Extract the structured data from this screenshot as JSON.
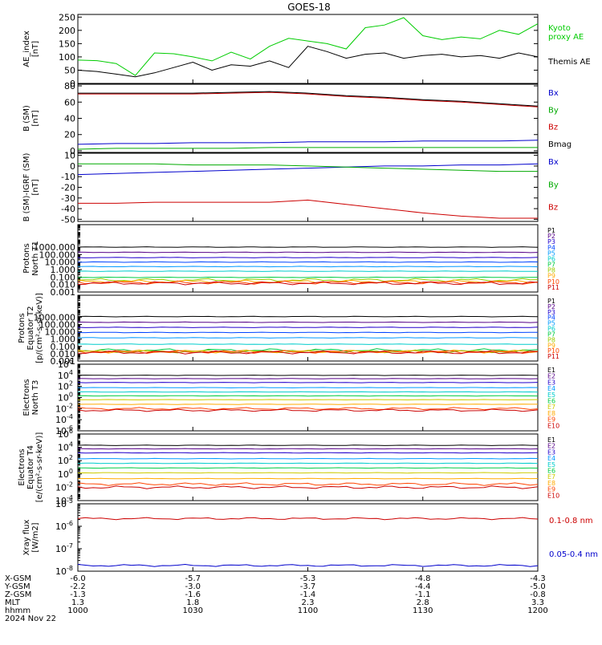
{
  "title": "GOES-18",
  "x_axis": {
    "rows": [
      {
        "label": "X-GSM",
        "values": [
          "-6.0",
          "-5.7",
          "-5.3",
          "-4.8",
          "-4.3"
        ]
      },
      {
        "label": "Y-GSM",
        "values": [
          "-2.2",
          "-3.0",
          "-3.7",
          "-4.4",
          "-5.0"
        ]
      },
      {
        "label": "Z-GSM",
        "values": [
          "-1.3",
          "-1.6",
          "-1.4",
          "-1.1",
          "-0.8"
        ]
      },
      {
        "label": "MLT",
        "values": [
          "1.3",
          "1.8",
          "2.3",
          "2.8",
          "3.3"
        ]
      },
      {
        "label": "hhmm",
        "values": [
          "1000",
          "1030",
          "1100",
          "1130",
          "1200"
        ]
      }
    ],
    "date": "2024 Nov 22"
  },
  "chart_data": [
    {
      "id": "ae",
      "type": "line",
      "ylabel": "AE_index\n[nT]",
      "ylim": [
        0,
        260
      ],
      "yticks": [
        "0",
        "50",
        "100",
        "150",
        "200",
        "250"
      ],
      "x": [
        1000,
        1005,
        1010,
        1015,
        1020,
        1025,
        1030,
        1035,
        1040,
        1045,
        1050,
        1055,
        1100,
        1105,
        1110,
        1115,
        1120,
        1125,
        1130,
        1135,
        1140,
        1145,
        1150,
        1155,
        1200
      ],
      "series": [
        {
          "name": "Kyoto\nproxy AE",
          "color": "#00cc00",
          "values": [
            88,
            86,
            75,
            30,
            115,
            112,
            100,
            85,
            118,
            92,
            140,
            170,
            160,
            150,
            130,
            210,
            220,
            248,
            180,
            165,
            175,
            168,
            200,
            185,
            225
          ]
        },
        {
          "name": "Themis AE",
          "color": "#000000",
          "values": [
            50,
            45,
            35,
            25,
            40,
            60,
            80,
            50,
            70,
            65,
            85,
            60,
            140,
            120,
            95,
            110,
            115,
            95,
            105,
            110,
            100,
            105,
            95,
            115,
            100
          ]
        }
      ]
    },
    {
      "id": "b",
      "type": "line",
      "ylabel": "B (SM)\n[nT]",
      "ylim": [
        -2,
        82
      ],
      "yticks": [
        "0",
        "20",
        "40",
        "60",
        "80"
      ],
      "x": [
        1000,
        1010,
        1020,
        1030,
        1040,
        1050,
        1100,
        1110,
        1120,
        1130,
        1140,
        1150,
        1200
      ],
      "series": [
        {
          "name": "Bx",
          "color": "#0000cc",
          "values": [
            8,
            9,
            9,
            10,
            10,
            10,
            11,
            11,
            11,
            12,
            12,
            12,
            13
          ]
        },
        {
          "name": "By",
          "color": "#00aa00",
          "values": [
            2,
            3,
            3,
            3,
            3,
            4,
            4,
            4,
            4,
            4,
            4,
            4,
            4
          ]
        },
        {
          "name": "Bz",
          "color": "#cc0000",
          "values": [
            70,
            70,
            70,
            70,
            71,
            72,
            70,
            67,
            65,
            62,
            60,
            57,
            54
          ]
        },
        {
          "name": "Bmag",
          "color": "#000000",
          "values": [
            71,
            71,
            71,
            71,
            72,
            73,
            71,
            68,
            66,
            63,
            61,
            58,
            55
          ]
        }
      ]
    },
    {
      "id": "dbigrf",
      "type": "line",
      "ylabel": "B (SM)-IGRF (SM)\n[nT]",
      "ylim": [
        -52,
        12
      ],
      "yticks": [
        "-50",
        "-40",
        "-30",
        "-20",
        "-10",
        "0",
        "10"
      ],
      "x": [
        1000,
        1010,
        1020,
        1030,
        1040,
        1050,
        1100,
        1110,
        1120,
        1130,
        1140,
        1150,
        1200
      ],
      "series": [
        {
          "name": "Bx",
          "color": "#0000cc",
          "values": [
            -8,
            -7,
            -6,
            -5,
            -4,
            -3,
            -2,
            -1,
            0,
            0,
            1,
            1,
            2
          ]
        },
        {
          "name": "By",
          "color": "#00aa00",
          "values": [
            2,
            2,
            2,
            1,
            1,
            1,
            0,
            -1,
            -2,
            -3,
            -4,
            -5,
            -5
          ]
        },
        {
          "name": "Bz",
          "color": "#cc0000",
          "values": [
            -35,
            -35,
            -34,
            -34,
            -34,
            -34,
            -32,
            -36,
            -40,
            -44,
            -47,
            -49,
            -49
          ]
        }
      ]
    },
    {
      "id": "protons_t1",
      "type": "line",
      "log": true,
      "ylabel": "Protons\nNorth T1",
      "ylim_exp": [
        -3,
        6
      ],
      "yticks": [
        "0.001",
        "0.010",
        "0.100",
        "1.000",
        "10.000",
        "100.000",
        "1000.000"
      ],
      "channels": [
        {
          "name": "P1",
          "color": "#000000",
          "level": 1000
        },
        {
          "name": "P2",
          "color": "#550088",
          "level": 200
        },
        {
          "name": "P3",
          "color": "#2200cc",
          "level": 40
        },
        {
          "name": "P4",
          "color": "#0044ff",
          "level": 10
        },
        {
          "name": "P5",
          "color": "#0099ff",
          "level": 2.5
        },
        {
          "name": "P6",
          "color": "#00cccc",
          "level": 0.6
        },
        {
          "name": "P7",
          "color": "#00cc44",
          "level": 0.09
        },
        {
          "name": "P8",
          "color": "#99cc00",
          "level": 0.04
        },
        {
          "name": "P9",
          "color": "#ffaa00",
          "level": 0.025
        },
        {
          "name": "P10",
          "color": "#ff4400",
          "level": 0.018
        },
        {
          "name": "P11",
          "color": "#cc0000",
          "level": 0.015
        }
      ]
    },
    {
      "id": "protons_t2",
      "type": "line",
      "log": true,
      "ylabel": "Protons\nEquator T2\n[p/(cm²-s-sr-keV)]",
      "ylim_exp": [
        -3,
        6
      ],
      "yticks": [
        "0.001",
        "0.010",
        "0.100",
        "1.000",
        "10.000",
        "100.000",
        "1000.000"
      ],
      "channels": [
        {
          "name": "P1",
          "color": "#000000",
          "level": 1200
        },
        {
          "name": "P2",
          "color": "#550088",
          "level": 200
        },
        {
          "name": "P3",
          "color": "#2200cc",
          "level": 40
        },
        {
          "name": "P4",
          "color": "#0044ff",
          "level": 8
        },
        {
          "name": "P5",
          "color": "#0099ff",
          "level": 1.5
        },
        {
          "name": "P6",
          "color": "#00cccc",
          "level": 0.2
        },
        {
          "name": "P7",
          "color": "#00cc44",
          "level": 0.03
        },
        {
          "name": "P8",
          "color": "#99cc00",
          "level": 0.02
        },
        {
          "name": "P9",
          "color": "#ffaa00",
          "level": 0.02
        },
        {
          "name": "P10",
          "color": "#ff4400",
          "level": 0.018
        },
        {
          "name": "P11",
          "color": "#cc0000",
          "level": 0.015
        }
      ]
    },
    {
      "id": "electrons_t3",
      "type": "line",
      "log": true,
      "ylabel": "Electrons\nNorth T3",
      "ylim_exp": [
        -6,
        6
      ],
      "ytick_exps": [
        -6,
        -4,
        -2,
        0,
        2,
        4,
        6
      ],
      "channels": [
        {
          "name": "E1",
          "color": "#000000",
          "level": 10000
        },
        {
          "name": "E2",
          "color": "#550088",
          "level": 2500
        },
        {
          "name": "E3",
          "color": "#2200cc",
          "level": 500
        },
        {
          "name": "E4",
          "color": "#0099ff",
          "level": 60
        },
        {
          "name": "E5",
          "color": "#00cccc",
          "level": 10
        },
        {
          "name": "E6",
          "color": "#00cc44",
          "level": 2
        },
        {
          "name": "E7",
          "color": "#cccc00",
          "level": 0.4
        },
        {
          "name": "E8",
          "color": "#ffaa00",
          "level": 0.06
        },
        {
          "name": "E9",
          "color": "#ff4400",
          "level": 0.01
        },
        {
          "name": "E10",
          "color": "#cc0000",
          "level": 0.005
        }
      ]
    },
    {
      "id": "electrons_t4",
      "type": "line",
      "log": true,
      "ylabel": "Electrons\nEquator T4\n[e/(cm²-s-sr-keV)]",
      "ylim_exp": [
        -4,
        6
      ],
      "ytick_exps": [
        -4,
        -2,
        0,
        2,
        4,
        6
      ],
      "channels": [
        {
          "name": "E1",
          "color": "#000000",
          "level": 20000
        },
        {
          "name": "E2",
          "color": "#550088",
          "level": 6000
        },
        {
          "name": "E3",
          "color": "#2200cc",
          "level": 1500
        },
        {
          "name": "E4",
          "color": "#0099ff",
          "level": 200
        },
        {
          "name": "E5",
          "color": "#00cccc",
          "level": 40
        },
        {
          "name": "E6",
          "color": "#00cc44",
          "level": 8
        },
        {
          "name": "E7",
          "color": "#cccc00",
          "level": 1.5
        },
        {
          "name": "E8",
          "color": "#ffaa00",
          "level": 0.2
        },
        {
          "name": "E9",
          "color": "#ff4400",
          "level": 0.03
        },
        {
          "name": "E10",
          "color": "#cc0000",
          "level": 0.01
        }
      ]
    },
    {
      "id": "xray",
      "type": "line",
      "log": true,
      "ylabel": "Xray flux\n[W/m2]",
      "ylim_exp": [
        -8,
        -5
      ],
      "ytick_exps": [
        -8,
        -7,
        -6,
        -5
      ],
      "series": [
        {
          "name": "0.1-0.8 nm",
          "color": "#cc0000",
          "level": 2.2e-06
        },
        {
          "name": "0.05-0.4 nm",
          "color": "#0000cc",
          "level": 1.8e-08
        }
      ]
    }
  ]
}
